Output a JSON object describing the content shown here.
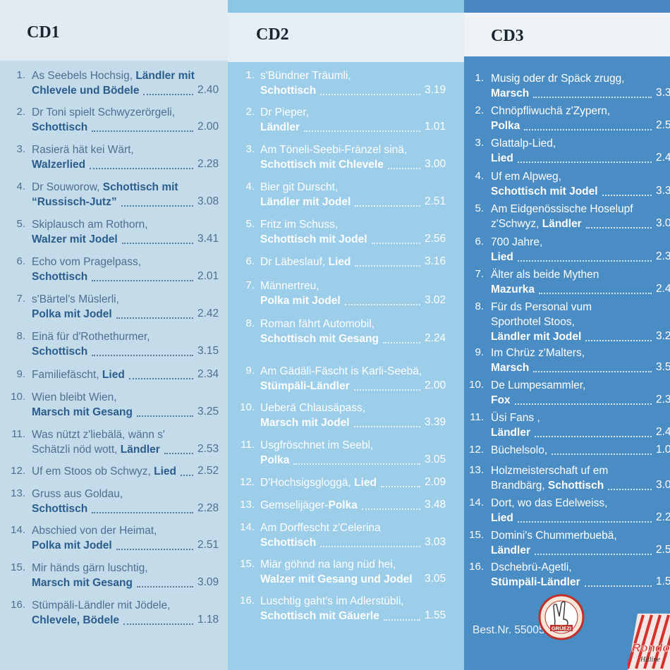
{
  "cd1": {
    "title": "CD1",
    "tracks": [
      {
        "num": "1.",
        "l1": "As Seebels Hochsig, ",
        "l1b": "Ländler mit",
        "l2": "",
        "l2b": "Chlevele und Bödele",
        "time": "2.40"
      },
      {
        "num": "2.",
        "l1": "Dr Toni spielt Schwyzerörgeli,",
        "l1b": "",
        "l2": "",
        "l2b": "Schottisch",
        "time": "2.00"
      },
      {
        "num": "3.",
        "l1": "Rasierä hät kei Wärt,",
        "l1b": "",
        "l2": "",
        "l2b": "Walzerlied",
        "time": "2.28"
      },
      {
        "num": "4.",
        "l1": "Dr Souworow, ",
        "l1b": "Schottisch mit",
        "l2": "",
        "l2b": "“Russisch-Jutz”",
        "time": "3.08"
      },
      {
        "num": "5.",
        "l1": "Skiplausch am Rothorn,",
        "l1b": "",
        "l2": "",
        "l2b": "Walzer mit Jodel",
        "time": "3.41"
      },
      {
        "num": "6.",
        "l1": "Echo vom Pragelpass,",
        "l1b": "",
        "l2": "",
        "l2b": "Schottisch",
        "time": "2.01"
      },
      {
        "num": "7.",
        "l1": "s'Bärtel's Müslerli,",
        "l1b": "",
        "l2": "",
        "l2b": "Polka mit Jodel",
        "time": "2.42"
      },
      {
        "num": "8.",
        "l1": "Einä für d'Rothethurmer,",
        "l1b": "",
        "l2": "",
        "l2b": "Schottisch",
        "time": "3.15"
      },
      {
        "num": "9.",
        "l1": "Familiefäscht, ",
        "l1b": "Lied",
        "l2": "",
        "l2b": "",
        "time": "2.34"
      },
      {
        "num": "10.",
        "l1": "Wien bleibt Wien,",
        "l1b": "",
        "l2": "",
        "l2b": "Marsch mit Gesang",
        "time": "3.25"
      },
      {
        "num": "11.",
        "l1": "Was nützt z'liebälä, wänn s'",
        "l1b": "",
        "l2": "Schätzli nöd wott, ",
        "l2b": "Ländler",
        "time": "2.53"
      },
      {
        "num": "12.",
        "l1": "Uf em Stoos ob Schwyz, ",
        "l1b": "Lied",
        "l2": "",
        "l2b": "",
        "time": "2.52"
      },
      {
        "num": "13.",
        "l1": "Gruss aus Goldau,",
        "l1b": "",
        "l2": "",
        "l2b": "Schottisch",
        "time": "2.28"
      },
      {
        "num": "14.",
        "l1": "Abschied von der Heimat,",
        "l1b": "",
        "l2": "",
        "l2b": "Polka mit Jodel",
        "time": "2.51"
      },
      {
        "num": "15.",
        "l1": "Mir händs gärn luschtig,",
        "l1b": "",
        "l2": "",
        "l2b": "Marsch mit Gesang",
        "time": "3.09"
      },
      {
        "num": "16.",
        "l1": "Stümpäli-Ländler mit Jödele,",
        "l1b": "",
        "l2": "",
        "l2b": "Chlevele, Bödele",
        "time": "1.18"
      }
    ]
  },
  "cd2": {
    "title": "CD2",
    "tracks": [
      {
        "num": "1.",
        "l1": "s'Bündner Träumli,",
        "l1b": "",
        "l2": "",
        "l2b": "Schottisch",
        "time": "3.19"
      },
      {
        "num": "2.",
        "l1": "Dr Pieper,",
        "l1b": "",
        "l2": "",
        "l2b": "Ländler",
        "time": "1.01"
      },
      {
        "num": "3.",
        "l1": "Am Töneli-Seebi-Fränzel sinä,",
        "l1b": "",
        "l2": "",
        "l2b": "Schottisch mit Chlevele",
        "time": "3.00"
      },
      {
        "num": "4.",
        "l1": "Bier git Durscht,",
        "l1b": "",
        "l2": "",
        "l2b": "Ländler mit Jodel",
        "time": "2.51"
      },
      {
        "num": "5.",
        "l1": "Fritz im Schuss,",
        "l1b": "",
        "l2": "",
        "l2b": "Schottisch mit Jodel",
        "time": "2.56"
      },
      {
        "num": "6.",
        "l1": "Dr Läbeslauf, ",
        "l1b": "Lied",
        "l2": "",
        "l2b": "",
        "time": "3.16"
      },
      {
        "num": "7.",
        "l1": "Männertreu,",
        "l1b": "",
        "l2": "",
        "l2b": "Polka mit Jodel",
        "time": "3.02"
      },
      {
        "num": "8.",
        "l1": "Roman fährt Automobil,",
        "l1b": "",
        "l2": "",
        "l2b": "Schottisch mit Gesang",
        "time": "2.24"
      },
      {
        "num": "9.",
        "l1": "Am Gädäli-Fäscht is Karli-Seebä,",
        "l1b": "",
        "l2": "",
        "l2b": "Stümpäli-Ländler",
        "time": "2.00"
      },
      {
        "num": "10.",
        "l1": "Ueberä Chlausäpass,",
        "l1b": "",
        "l2": "",
        "l2b": "Marsch mit Jodel",
        "time": "3.39"
      },
      {
        "num": "11.",
        "l1": "Usgfröschnet im Seebl,",
        "l1b": "",
        "l2": "",
        "l2b": "Polka",
        "time": "3.05"
      },
      {
        "num": "12.",
        "l1": "D'Hochsigsgloggä, ",
        "l1b": "Lied",
        "l2": "",
        "l2b": "",
        "time": "2.09"
      },
      {
        "num": "13.",
        "l1": "Gemselijäger-",
        "l1b": "Polka",
        "l2": "",
        "l2b": "",
        "time": "3.48"
      },
      {
        "num": "14.",
        "l1": "Am Dorffescht z'Celerina",
        "l1b": "",
        "l2": "",
        "l2b": "Schottisch",
        "time": "3.03"
      },
      {
        "num": "15.",
        "l1": "Miär göhnd na lang nüd hei,",
        "l1b": "",
        "l2": "",
        "l2b": "Walzer mit Gesang und Jodel",
        "time": "3.05"
      },
      {
        "num": "16.",
        "l1": "Luschtig gaht's im Adlerstübli,",
        "l1b": "",
        "l2": "",
        "l2b": "Schottisch mit Gäuerle",
        "time": "1.55"
      }
    ]
  },
  "cd3": {
    "title": "CD3",
    "tracks": [
      {
        "num": "1.",
        "l1": "Musig oder dr Späck zrugg,",
        "l1b": "",
        "l2": "",
        "l2b": "Marsch",
        "l3": "",
        "l3b": "",
        "time": "3.3"
      },
      {
        "num": "2.",
        "l1": "Chnöpfliwuchä z'Zypern,",
        "l1b": "",
        "l2": "",
        "l2b": "Polka",
        "l3": "",
        "l3b": "",
        "time": "2.5"
      },
      {
        "num": "3.",
        "l1": "Glattalp-Lied,",
        "l1b": "",
        "l2": "",
        "l2b": "Lied",
        "l3": "",
        "l3b": "",
        "time": "2.4"
      },
      {
        "num": "4.",
        "l1": "Uf em Alpweg,",
        "l1b": "",
        "l2": "",
        "l2b": "Schottisch mit Jodel",
        "l3": "",
        "l3b": "",
        "time": "3.3"
      },
      {
        "num": "5.",
        "l1": "Am Eidgenössische Hoselupf",
        "l1b": "",
        "l2": "z'Schwyz, ",
        "l2b": "Ländler",
        "l3": "",
        "l3b": "",
        "time": "3.0"
      },
      {
        "num": "6.",
        "l1": "700 Jahre,",
        "l1b": "",
        "l2": "",
        "l2b": "Lied",
        "l3": "",
        "l3b": "",
        "time": "2.3"
      },
      {
        "num": "7.",
        "l1": "Älter als beide Mythen",
        "l1b": "",
        "l2": "",
        "l2b": "Mazurka",
        "l3": "",
        "l3b": "",
        "time": "2.4"
      },
      {
        "num": "8.",
        "l1": "Für ds Personal vum",
        "l1b": "",
        "l2": "Sporthotel Stoos,",
        "l2b": "",
        "l3": "",
        "l3b": "Ländler mit Jodel",
        "time": "3.2"
      },
      {
        "num": "9.",
        "l1": "Im Chrüz z'Malters,",
        "l1b": "",
        "l2": "",
        "l2b": "Marsch",
        "l3": "",
        "l3b": "",
        "time": "3.5"
      },
      {
        "num": "10.",
        "l1": "De Lumpesammler,",
        "l1b": "",
        "l2": "",
        "l2b": "Fox",
        "l3": "",
        "l3b": "",
        "time": "2.3"
      },
      {
        "num": "11.",
        "l1": "Üsi Fans ,",
        "l1b": "",
        "l2": "",
        "l2b": "Ländler",
        "l3": "",
        "l3b": "",
        "time": "2.4"
      },
      {
        "num": "12.",
        "l1": "Büchelsolo,",
        "l1b": "",
        "l2": "",
        "l2b": "",
        "l3": "",
        "l3b": "",
        "time": "1.0"
      },
      {
        "num": "13.",
        "l1": "Holzmeisterschaft uf em",
        "l1b": "",
        "l2": "Brandbärg, ",
        "l2b": "Schottisch",
        "l3": "",
        "l3b": "",
        "time": "3.0"
      },
      {
        "num": "14.",
        "l1": "Dort, wo das Edelweiss,",
        "l1b": "",
        "l2": "",
        "l2b": "Lied",
        "l3": "",
        "l3b": "",
        "time": "2.2"
      },
      {
        "num": "15.",
        "l1": "Domini's Chummerbuebä,",
        "l1b": "",
        "l2": "",
        "l2b": "Ländler",
        "l3": "",
        "l3b": "",
        "time": "2.5"
      },
      {
        "num": "16.",
        "l1": "Dschebrü-Agetli,",
        "l1b": "",
        "l2": "",
        "l2b": "Stümpäli-Ländler",
        "l3": "",
        "l3b": "",
        "time": "1.5"
      }
    ],
    "best_nr": "Best.Nr. 55005",
    "logo1_text": "GRÜEZI",
    "logo2_text": "Rondo",
    "logo2_sub": "Hitline"
  },
  "colors": {
    "cd1_bg": "#c4dbe9",
    "cd2_bg": "#9ccde9",
    "cd3_bg": "#4a8cc4",
    "cd1_text": "#2a5c8c",
    "header_text": "#1a2430"
  }
}
